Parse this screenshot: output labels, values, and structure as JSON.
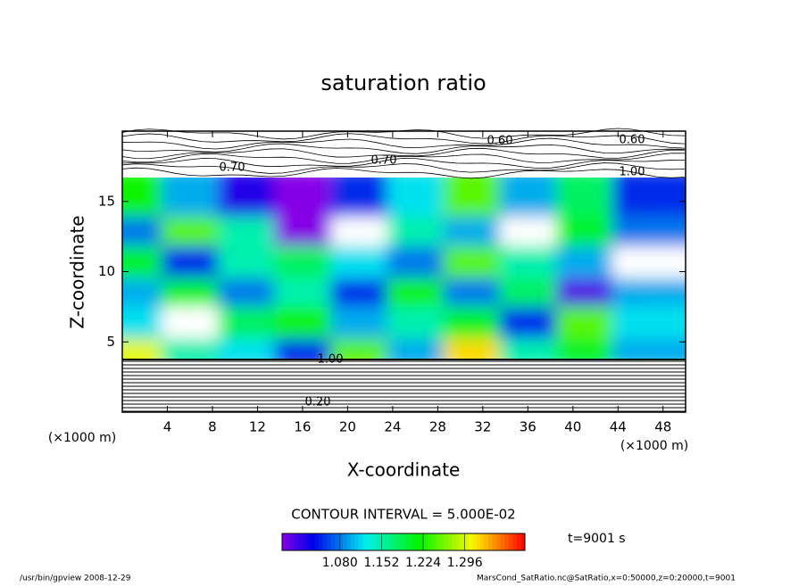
{
  "chart_data": {
    "type": "contour",
    "title": "saturation ratio",
    "x_label": "X-coordinate",
    "y_label": "Z-coordinate",
    "x_unit": "(×1000 m)",
    "y_unit": "(×1000 m)",
    "xlim": [
      0,
      50
    ],
    "xticks": [
      4,
      8,
      12,
      16,
      20,
      24,
      28,
      32,
      36,
      40,
      44,
      48
    ],
    "ylim": [
      0,
      20
    ],
    "yticks": [
      5,
      10,
      15
    ],
    "field": {
      "x": [
        2.5,
        7.5,
        12.5,
        17.5,
        22.5,
        27.5,
        32.5,
        37.5,
        42.5,
        47.5
      ],
      "z": [
        4.9,
        7.0,
        9.2,
        11.3,
        13.5,
        15.6
      ],
      "values": [
        [
          1.3,
          1.15,
          1.12,
          1.05,
          1.25,
          1.1,
          1.32,
          1.15,
          1.2,
          1.1
        ],
        [
          1.12,
          0.95,
          1.18,
          1.22,
          1.1,
          1.15,
          1.2,
          1.05,
          1.25,
          1.12
        ],
        [
          1.1,
          1.2,
          1.08,
          1.15,
          1.05,
          1.22,
          1.08,
          1.18,
          1.0,
          1.1
        ],
        [
          1.2,
          1.05,
          1.15,
          1.18,
          1.12,
          1.08,
          1.25,
          1.15,
          1.1,
          0.95
        ],
        [
          1.08,
          1.25,
          1.15,
          0.98,
          0.95,
          1.15,
          1.1,
          0.95,
          1.2,
          1.08
        ],
        [
          1.22,
          1.1,
          1.02,
          0.98,
          1.05,
          1.12,
          1.25,
          1.1,
          1.18,
          1.05
        ]
      ]
    },
    "colorbar": {
      "clim": [
        0.98,
        1.4
      ],
      "ticks": [
        {
          "value": 1.08,
          "label": "1.080"
        },
        {
          "value": 1.152,
          "label": "1.152"
        },
        {
          "value": 1.224,
          "label": "1.224"
        },
        {
          "value": 1.296,
          "label": "1.296"
        }
      ]
    },
    "contour_labels": [
      "0.60",
      "0.70",
      "1.00",
      "0.70",
      "0.60",
      "1.00",
      "0.20"
    ],
    "contour_interval": "CONTOUR INTERVAL = 5.000E-02",
    "time_label": "t=9001 s",
    "footer_left": "/usr/bin/gpview   2008-12-29",
    "footer_right": "MarsCond_SatRatio.nc@SatRatio,x=0:50000,z=0:20000,t=9001"
  }
}
